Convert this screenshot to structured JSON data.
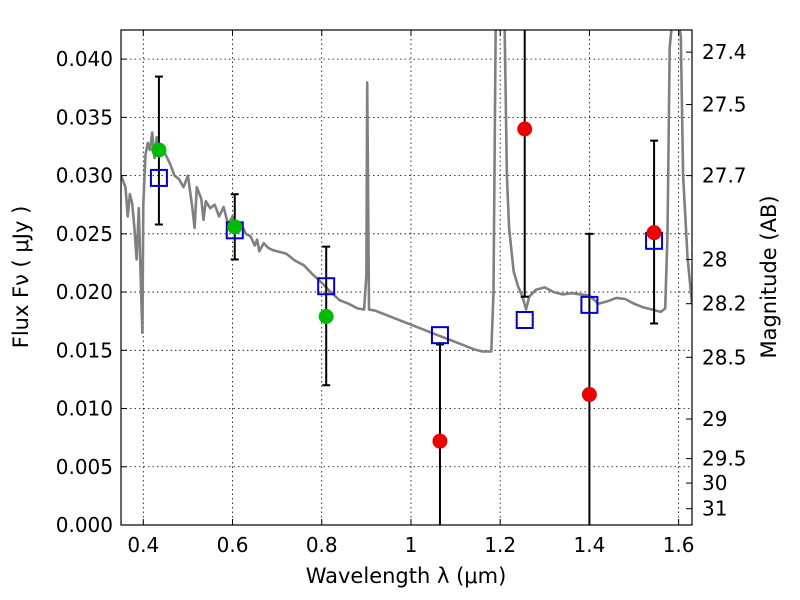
{
  "chart_data": {
    "type": "scatter",
    "xlabel": "Wavelength  λ (μm)",
    "ylabel": "Flux  Fν  ( μJy )",
    "y2label": "Magnitude (AB)",
    "xlim": [
      0.35,
      1.63
    ],
    "ylim": [
      0.0,
      0.0425
    ],
    "grid": true,
    "x_ticks": [
      0.4,
      0.6,
      0.8,
      1,
      1.2,
      1.4,
      1.6
    ],
    "x_tick_labels": [
      "0.4",
      "0.6",
      "0.8",
      "1",
      "1.2",
      "1.4",
      "1.6"
    ],
    "y_ticks": [
      0.0,
      0.005,
      0.01,
      0.015,
      0.02,
      0.025,
      0.03,
      0.035,
      0.04
    ],
    "y_tick_labels": [
      "0.000",
      "0.005",
      "0.010",
      "0.015",
      "0.020",
      "0.025",
      "0.030",
      "0.035",
      "0.040"
    ],
    "mag_ticks": [
      {
        "label": "27.4",
        "flux": 0.0406
      },
      {
        "label": "27.5",
        "flux": 0.0361
      },
      {
        "label": "27.7",
        "flux": 0.03
      },
      {
        "label": "28",
        "flux": 0.0228
      },
      {
        "label": "28.2",
        "flux": 0.019
      },
      {
        "label": "28.5",
        "flux": 0.0144
      },
      {
        "label": "29",
        "flux": 0.0091
      },
      {
        "label": "29.5",
        "flux": 0.0057
      },
      {
        "label": "30",
        "flux": 0.0036
      },
      {
        "label": "31",
        "flux": 0.0014
      }
    ],
    "colors": {
      "template": "#808080",
      "model": "#0000cc",
      "green": "#00bb00",
      "red": "#ee0000",
      "errorbar": "#000000"
    },
    "template_spectrum": [
      [
        0.35,
        0.03
      ],
      [
        0.36,
        0.029
      ],
      [
        0.365,
        0.0265
      ],
      [
        0.37,
        0.0284
      ],
      [
        0.375,
        0.0276
      ],
      [
        0.38,
        0.0255
      ],
      [
        0.385,
        0.0228
      ],
      [
        0.39,
        0.0272
      ],
      [
        0.395,
        0.02
      ],
      [
        0.398,
        0.0165
      ],
      [
        0.4,
        0.0275
      ],
      [
        0.405,
        0.0318
      ],
      [
        0.41,
        0.0328
      ],
      [
        0.415,
        0.0322
      ],
      [
        0.42,
        0.0337
      ],
      [
        0.425,
        0.0315
      ],
      [
        0.43,
        0.0333
      ],
      [
        0.435,
        0.032
      ],
      [
        0.44,
        0.0326
      ],
      [
        0.45,
        0.0318
      ],
      [
        0.46,
        0.031
      ],
      [
        0.47,
        0.03
      ],
      [
        0.48,
        0.0297
      ],
      [
        0.49,
        0.029
      ],
      [
        0.5,
        0.03
      ],
      [
        0.51,
        0.0272
      ],
      [
        0.515,
        0.0255
      ],
      [
        0.52,
        0.029
      ],
      [
        0.53,
        0.028
      ],
      [
        0.535,
        0.0262
      ],
      [
        0.54,
        0.0278
      ],
      [
        0.55,
        0.0272
      ],
      [
        0.56,
        0.0275
      ],
      [
        0.57,
        0.0265
      ],
      [
        0.58,
        0.0273
      ],
      [
        0.59,
        0.0258
      ],
      [
        0.6,
        0.0265
      ],
      [
        0.61,
        0.0255
      ],
      [
        0.62,
        0.0258
      ],
      [
        0.63,
        0.025
      ],
      [
        0.64,
        0.0248
      ],
      [
        0.65,
        0.024
      ],
      [
        0.655,
        0.0245
      ],
      [
        0.66,
        0.0235
      ],
      [
        0.67,
        0.0242
      ],
      [
        0.68,
        0.0238
      ],
      [
        0.69,
        0.0236
      ],
      [
        0.7,
        0.0235
      ],
      [
        0.72,
        0.0233
      ],
      [
        0.74,
        0.0227
      ],
      [
        0.76,
        0.0223
      ],
      [
        0.78,
        0.0215
      ],
      [
        0.8,
        0.0208
      ],
      [
        0.82,
        0.02
      ],
      [
        0.84,
        0.0193
      ],
      [
        0.86,
        0.019
      ],
      [
        0.88,
        0.0186
      ],
      [
        0.895,
        0.0185
      ],
      [
        0.9,
        0.0215
      ],
      [
        0.902,
        0.038
      ],
      [
        0.906,
        0.0185
      ],
      [
        0.92,
        0.0184
      ],
      [
        0.94,
        0.0181
      ],
      [
        0.96,
        0.0178
      ],
      [
        0.98,
        0.0175
      ],
      [
        1.0,
        0.0172
      ],
      [
        1.02,
        0.0169
      ],
      [
        1.04,
        0.0166
      ],
      [
        1.06,
        0.0163
      ],
      [
        1.08,
        0.016
      ],
      [
        1.1,
        0.0157
      ],
      [
        1.12,
        0.0154
      ],
      [
        1.14,
        0.0151
      ],
      [
        1.16,
        0.0149
      ],
      [
        1.18,
        0.0149
      ],
      [
        1.185,
        0.02
      ],
      [
        1.19,
        0.043
      ],
      [
        1.21,
        0.043
      ],
      [
        1.215,
        0.03
      ],
      [
        1.22,
        0.0255
      ],
      [
        1.23,
        0.0218
      ],
      [
        1.24,
        0.0205
      ],
      [
        1.25,
        0.0196
      ],
      [
        1.258,
        0.0185
      ],
      [
        1.265,
        0.0196
      ],
      [
        1.28,
        0.0202
      ],
      [
        1.3,
        0.0204
      ],
      [
        1.32,
        0.02
      ],
      [
        1.34,
        0.0198
      ],
      [
        1.36,
        0.0199
      ],
      [
        1.38,
        0.0198
      ],
      [
        1.4,
        0.0197
      ],
      [
        1.42,
        0.019
      ],
      [
        1.44,
        0.0192
      ],
      [
        1.46,
        0.0195
      ],
      [
        1.48,
        0.0194
      ],
      [
        1.5,
        0.019
      ],
      [
        1.52,
        0.0187
      ],
      [
        1.54,
        0.0185
      ],
      [
        1.56,
        0.0183
      ],
      [
        1.57,
        0.0186
      ],
      [
        1.575,
        0.025
      ],
      [
        1.58,
        0.041
      ],
      [
        1.585,
        0.043
      ],
      [
        1.6,
        0.043
      ],
      [
        1.605,
        0.042
      ],
      [
        1.61,
        0.03
      ],
      [
        1.62,
        0.023
      ],
      [
        1.63,
        0.019
      ]
    ],
    "model_points": [
      {
        "x": 0.435,
        "y": 0.0298
      },
      {
        "x": 0.605,
        "y": 0.0253
      },
      {
        "x": 0.81,
        "y": 0.0205
      },
      {
        "x": 1.065,
        "y": 0.0163
      },
      {
        "x": 1.255,
        "y": 0.0176
      },
      {
        "x": 1.4,
        "y": 0.0189
      },
      {
        "x": 1.545,
        "y": 0.0244
      }
    ],
    "observed_points": [
      {
        "x": 0.435,
        "y": 0.0322,
        "yerr_low": 0.0258,
        "yerr_high": 0.0385,
        "color": "green"
      },
      {
        "x": 0.605,
        "y": 0.0256,
        "yerr_low": 0.0228,
        "yerr_high": 0.0284,
        "color": "green"
      },
      {
        "x": 0.81,
        "y": 0.0179,
        "yerr_low": 0.012,
        "yerr_high": 0.0239,
        "color": "green"
      },
      {
        "x": 1.065,
        "y": 0.0072,
        "yerr_low": 0.0,
        "yerr_high": 0.0155,
        "color": "red"
      },
      {
        "x": 1.255,
        "y": 0.034,
        "yerr_low": 0.0196,
        "yerr_high": 0.0425,
        "color": "red"
      },
      {
        "x": 1.4,
        "y": 0.0112,
        "yerr_low": 0.0,
        "yerr_high": 0.025,
        "color": "red"
      },
      {
        "x": 1.545,
        "y": 0.0251,
        "yerr_low": 0.0173,
        "yerr_high": 0.033,
        "color": "red"
      }
    ]
  }
}
